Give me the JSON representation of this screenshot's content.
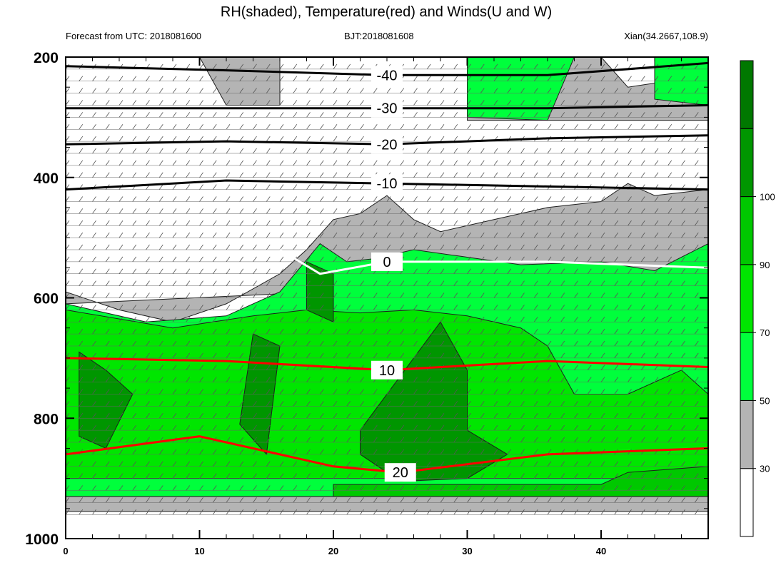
{
  "title": "RH(shaded), Temperature(red) and Winds(U and W)",
  "subtitle_left": "Forecast from UTC: 2018081600",
  "subtitle_center": "BJT:2018081608",
  "subtitle_right": "Xian(34.2667,108.9)",
  "chart_data": {
    "type": "heatmap",
    "title": "RH(shaded), Temperature(red) and Winds(U and W)",
    "xlabel": "",
    "ylabel": "",
    "xlim": [
      0,
      48
    ],
    "ylim": [
      1000,
      200
    ],
    "x_ticks": [
      "0",
      "10",
      "20",
      "30",
      "40"
    ],
    "x_tick_values": [
      0,
      10,
      20,
      30,
      40
    ],
    "y_ticks": [
      "200",
      "400",
      "600",
      "800",
      "1000"
    ],
    "y_tick_values": [
      200,
      400,
      600,
      800,
      1000
    ],
    "colorbar": {
      "levels": [
        "30",
        "50",
        "70",
        "90",
        "100"
      ],
      "colors": [
        "#ffffff",
        "#b4b4b4",
        "#00ff3c",
        "#00e600",
        "#00c800",
        "#009600",
        "#007800"
      ]
    },
    "rh_regions": [
      {
        "level": "30-50",
        "color": "#b4b4b4",
        "points": [
          [
            0,
            930
          ],
          [
            48,
            930
          ],
          [
            48,
            955
          ],
          [
            0,
            955
          ]
        ]
      },
      {
        "level": "30-50",
        "color": "#b4b4b4",
        "points": [
          [
            0,
            590
          ],
          [
            4,
            620
          ],
          [
            8,
            640
          ],
          [
            12,
            610
          ],
          [
            16,
            560
          ],
          [
            18,
            520
          ],
          [
            20,
            470
          ],
          [
            22,
            460
          ],
          [
            24,
            430
          ],
          [
            26,
            470
          ],
          [
            28,
            490
          ],
          [
            32,
            470
          ],
          [
            36,
            450
          ],
          [
            40,
            440
          ],
          [
            42,
            410
          ],
          [
            44,
            430
          ],
          [
            48,
            420
          ],
          [
            48,
            560
          ],
          [
            0,
            610
          ]
        ]
      },
      {
        "level": "30-50",
        "color": "#b4b4b4",
        "points": [
          [
            10,
            200
          ],
          [
            16,
            200
          ],
          [
            16,
            280
          ],
          [
            12,
            280
          ]
        ]
      },
      {
        "level": "30-50",
        "color": "#b4b4b4",
        "points": [
          [
            30,
            200
          ],
          [
            40,
            200
          ],
          [
            42,
            250
          ],
          [
            48,
            230
          ],
          [
            48,
            305
          ],
          [
            30,
            305
          ]
        ]
      },
      {
        "level": "50-70",
        "color": "#00ff3c",
        "points": [
          [
            0,
            610
          ],
          [
            6,
            640
          ],
          [
            12,
            630
          ],
          [
            16,
            590
          ],
          [
            19,
            510
          ],
          [
            21,
            540
          ],
          [
            23,
            535
          ],
          [
            26,
            520
          ],
          [
            34,
            545
          ],
          [
            40,
            540
          ],
          [
            44,
            555
          ],
          [
            48,
            510
          ],
          [
            48,
            930
          ],
          [
            0,
            930
          ]
        ]
      },
      {
        "level": "50-70",
        "color": "#00ff3c",
        "points": [
          [
            30,
            200
          ],
          [
            38,
            200
          ],
          [
            36,
            305
          ],
          [
            30,
            300
          ]
        ]
      },
      {
        "level": "50-70",
        "color": "#00ff3c",
        "points": [
          [
            44,
            200
          ],
          [
            48,
            200
          ],
          [
            48,
            280
          ],
          [
            44,
            270
          ]
        ]
      },
      {
        "level": "70-90",
        "color": "#00e600",
        "points": [
          [
            0,
            620
          ],
          [
            8,
            650
          ],
          [
            14,
            630
          ],
          [
            18,
            620
          ],
          [
            22,
            625
          ],
          [
            26,
            620
          ],
          [
            30,
            630
          ],
          [
            34,
            650
          ],
          [
            36,
            680
          ],
          [
            38,
            760
          ],
          [
            42,
            760
          ],
          [
            46,
            720
          ],
          [
            48,
            760
          ],
          [
            48,
            900
          ],
          [
            0,
            900
          ]
        ]
      },
      {
        "level": "90-100",
        "color": "#00c800",
        "points": [
          [
            20,
            910
          ],
          [
            40,
            910
          ],
          [
            42,
            890
          ],
          [
            48,
            880
          ],
          [
            48,
            930
          ],
          [
            20,
            930
          ]
        ]
      },
      {
        "level": "100+",
        "color": "#009600",
        "points": [
          [
            1,
            690
          ],
          [
            3,
            720
          ],
          [
            5,
            760
          ],
          [
            3,
            850
          ],
          [
            1,
            830
          ]
        ]
      },
      {
        "level": "100+",
        "color": "#009600",
        "points": [
          [
            18,
            540
          ],
          [
            20,
            560
          ],
          [
            20,
            640
          ],
          [
            18,
            620
          ]
        ]
      },
      {
        "level": "100+",
        "color": "#009600",
        "points": [
          [
            14,
            660
          ],
          [
            16,
            680
          ],
          [
            15,
            860
          ],
          [
            13,
            810
          ]
        ]
      },
      {
        "level": "100+",
        "color": "#009600",
        "points": [
          [
            22,
            820
          ],
          [
            28,
            640
          ],
          [
            30,
            720
          ],
          [
            30,
            820
          ],
          [
            33,
            860
          ],
          [
            30,
            900
          ],
          [
            25,
            905
          ],
          [
            22,
            860
          ]
        ]
      }
    ],
    "temperature_contours": [
      {
        "label": "-40",
        "color": "#000000",
        "points": [
          [
            0,
            215
          ],
          [
            12,
            222
          ],
          [
            24,
            230
          ],
          [
            36,
            230
          ],
          [
            48,
            210
          ]
        ]
      },
      {
        "label": "-30",
        "color": "#000000",
        "points": [
          [
            0,
            285
          ],
          [
            12,
            285
          ],
          [
            24,
            285
          ],
          [
            36,
            285
          ],
          [
            48,
            280
          ]
        ]
      },
      {
        "label": "-20",
        "color": "#000000",
        "points": [
          [
            0,
            345
          ],
          [
            12,
            340
          ],
          [
            24,
            345
          ],
          [
            36,
            335
          ],
          [
            48,
            330
          ]
        ]
      },
      {
        "label": "-10",
        "color": "#000000",
        "points": [
          [
            0,
            420
          ],
          [
            12,
            405
          ],
          [
            24,
            410
          ],
          [
            36,
            415
          ],
          [
            48,
            420
          ]
        ]
      },
      {
        "label": "0",
        "color": "#ffffff",
        "points": [
          [
            16,
            520
          ],
          [
            19,
            560
          ],
          [
            24,
            540
          ],
          [
            36,
            540
          ],
          [
            48,
            550
          ]
        ]
      },
      {
        "label": "10",
        "color": "#ff0000",
        "points": [
          [
            0,
            700
          ],
          [
            12,
            705
          ],
          [
            24,
            720
          ],
          [
            36,
            705
          ],
          [
            48,
            715
          ]
        ]
      },
      {
        "label": "20",
        "color": "#ff0000",
        "points": [
          [
            0,
            860
          ],
          [
            10,
            830
          ],
          [
            20,
            880
          ],
          [
            25,
            890
          ],
          [
            36,
            860
          ],
          [
            48,
            850
          ]
        ]
      }
    ],
    "grid": false,
    "legend": "right"
  }
}
